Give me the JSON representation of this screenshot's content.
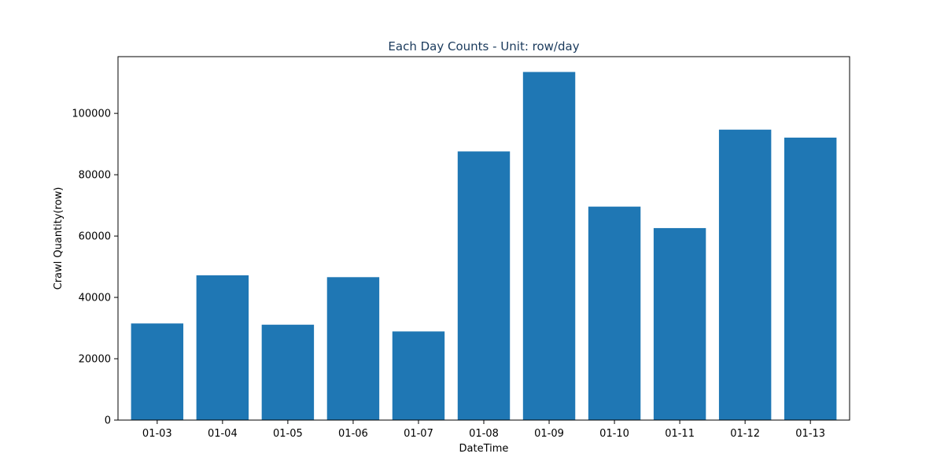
{
  "chart_data": {
    "type": "bar",
    "title": "Each Day Counts - Unit: row/day",
    "xlabel": "DateTime",
    "ylabel": "Crawl Quantity(row)",
    "categories": [
      "01-03",
      "01-04",
      "01-05",
      "01-06",
      "01-07",
      "01-08",
      "01-09",
      "01-10",
      "01-11",
      "01-12",
      "01-13"
    ],
    "values": [
      31500,
      47200,
      31100,
      46600,
      28900,
      87600,
      113500,
      69600,
      62600,
      94700,
      92100
    ],
    "ylim": [
      0,
      118500
    ],
    "yticks": [
      0,
      20000,
      40000,
      60000,
      80000,
      100000
    ],
    "ytick_labels": [
      "0",
      "20000",
      "40000",
      "60000",
      "80000",
      "100000"
    ],
    "grid": false,
    "legend": "none"
  },
  "colors": {
    "bar": "#1f77b4",
    "title": "#1a3a5c",
    "axis": "#000000"
  }
}
